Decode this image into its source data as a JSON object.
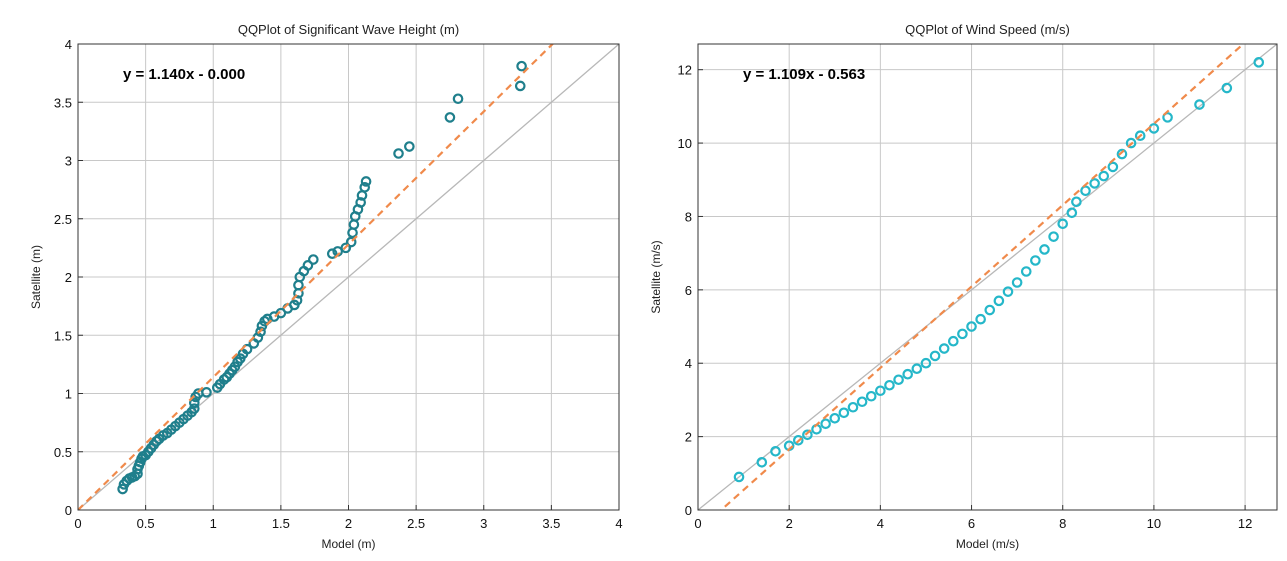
{
  "chart_data": [
    {
      "type": "scatter",
      "title": "QQPlot of  Significant Wave Height (m)",
      "xlabel": "Model (m)",
      "ylabel": "Satellite (m)",
      "annotation": "y = 1.140x - 0.000",
      "xlim": [
        0,
        4
      ],
      "ylim": [
        0,
        4
      ],
      "xticks": [
        0,
        0.5,
        1,
        1.5,
        2,
        2.5,
        3,
        3.5,
        4
      ],
      "xtick_labels": [
        "0",
        "0.5",
        "1",
        "1.5",
        "2",
        "2.5",
        "3",
        "3.5",
        "4"
      ],
      "yticks": [
        0,
        0.5,
        1,
        1.5,
        2,
        2.5,
        3,
        3.5,
        4
      ],
      "ytick_labels": [
        "0",
        "0.5",
        "1",
        "1.5",
        "2",
        "2.5",
        "3",
        "3.5",
        "4"
      ],
      "grid": true,
      "marker_color": "#1f7f8c",
      "fit_line": {
        "slope": 1.14,
        "intercept": 0.0,
        "color": "#f08a4b"
      },
      "reference_line": {
        "slope": 1,
        "intercept": 0,
        "color": "#b8b8b8"
      },
      "points": [
        [
          0.33,
          0.18
        ],
        [
          0.34,
          0.22
        ],
        [
          0.36,
          0.25
        ],
        [
          0.38,
          0.27
        ],
        [
          0.4,
          0.28
        ],
        [
          0.42,
          0.29
        ],
        [
          0.44,
          0.31
        ],
        [
          0.44,
          0.35
        ],
        [
          0.45,
          0.38
        ],
        [
          0.46,
          0.41
        ],
        [
          0.47,
          0.44
        ],
        [
          0.48,
          0.46
        ],
        [
          0.5,
          0.47
        ],
        [
          0.52,
          0.5
        ],
        [
          0.54,
          0.53
        ],
        [
          0.56,
          0.56
        ],
        [
          0.58,
          0.59
        ],
        [
          0.6,
          0.61
        ],
        [
          0.63,
          0.64
        ],
        [
          0.66,
          0.66
        ],
        [
          0.69,
          0.69
        ],
        [
          0.72,
          0.72
        ],
        [
          0.75,
          0.75
        ],
        [
          0.78,
          0.78
        ],
        [
          0.81,
          0.81
        ],
        [
          0.84,
          0.84
        ],
        [
          0.86,
          0.87
        ],
        [
          0.86,
          0.92
        ],
        [
          0.87,
          0.97
        ],
        [
          0.89,
          1.0
        ],
        [
          0.95,
          1.01
        ],
        [
          1.03,
          1.05
        ],
        [
          1.05,
          1.08
        ],
        [
          1.08,
          1.12
        ],
        [
          1.1,
          1.14
        ],
        [
          1.12,
          1.17
        ],
        [
          1.14,
          1.2
        ],
        [
          1.16,
          1.23
        ],
        [
          1.18,
          1.27
        ],
        [
          1.2,
          1.3
        ],
        [
          1.22,
          1.34
        ],
        [
          1.25,
          1.38
        ],
        [
          1.3,
          1.43
        ],
        [
          1.33,
          1.48
        ],
        [
          1.35,
          1.53
        ],
        [
          1.36,
          1.58
        ],
        [
          1.38,
          1.62
        ],
        [
          1.4,
          1.64
        ],
        [
          1.45,
          1.66
        ],
        [
          1.5,
          1.69
        ],
        [
          1.55,
          1.73
        ],
        [
          1.6,
          1.76
        ],
        [
          1.62,
          1.8
        ],
        [
          1.63,
          1.86
        ],
        [
          1.63,
          1.93
        ],
        [
          1.64,
          2.0
        ],
        [
          1.67,
          2.05
        ],
        [
          1.7,
          2.1
        ],
        [
          1.74,
          2.15
        ],
        [
          1.88,
          2.2
        ],
        [
          1.92,
          2.22
        ],
        [
          1.98,
          2.25
        ],
        [
          2.02,
          2.3
        ],
        [
          2.03,
          2.38
        ],
        [
          2.04,
          2.45
        ],
        [
          2.05,
          2.52
        ],
        [
          2.07,
          2.58
        ],
        [
          2.09,
          2.64
        ],
        [
          2.1,
          2.7
        ],
        [
          2.12,
          2.77
        ],
        [
          2.13,
          2.82
        ],
        [
          2.37,
          3.06
        ],
        [
          2.45,
          3.12
        ],
        [
          2.75,
          3.37
        ],
        [
          2.81,
          3.53
        ],
        [
          3.27,
          3.64
        ],
        [
          3.28,
          3.81
        ]
      ]
    },
    {
      "type": "scatter",
      "title": "QQPlot of  Wind Speed (m/s)",
      "xlabel": "Model (m/s)",
      "ylabel": "Satellite (m/s)",
      "annotation": "y = 1.109x - 0.563",
      "xlim": [
        0,
        12.7
      ],
      "ylim": [
        0,
        12.7
      ],
      "xticks": [
        0,
        2,
        4,
        6,
        8,
        10,
        12
      ],
      "xtick_labels": [
        "0",
        "2",
        "4",
        "6",
        "8",
        "10",
        "12"
      ],
      "yticks": [
        0,
        2,
        4,
        6,
        8,
        10,
        12
      ],
      "ytick_labels": [
        "0",
        "2",
        "4",
        "6",
        "8",
        "10",
        "12"
      ],
      "grid": true,
      "marker_color": "#25b7c9",
      "fit_line": {
        "slope": 1.109,
        "intercept": -0.563,
        "color": "#f08a4b"
      },
      "reference_line": {
        "slope": 1,
        "intercept": 0,
        "color": "#b8b8b8"
      },
      "points": [
        [
          0.9,
          0.9
        ],
        [
          1.4,
          1.3
        ],
        [
          1.7,
          1.6
        ],
        [
          2.0,
          1.75
        ],
        [
          2.2,
          1.9
        ],
        [
          2.4,
          2.05
        ],
        [
          2.6,
          2.2
        ],
        [
          2.8,
          2.35
        ],
        [
          3.0,
          2.5
        ],
        [
          3.2,
          2.65
        ],
        [
          3.4,
          2.8
        ],
        [
          3.6,
          2.95
        ],
        [
          3.8,
          3.1
        ],
        [
          4.0,
          3.25
        ],
        [
          4.2,
          3.4
        ],
        [
          4.4,
          3.55
        ],
        [
          4.6,
          3.7
        ],
        [
          4.8,
          3.85
        ],
        [
          5.0,
          4.0
        ],
        [
          5.2,
          4.2
        ],
        [
          5.4,
          4.4
        ],
        [
          5.6,
          4.6
        ],
        [
          5.8,
          4.8
        ],
        [
          6.0,
          5.0
        ],
        [
          6.2,
          5.2
        ],
        [
          6.4,
          5.45
        ],
        [
          6.6,
          5.7
        ],
        [
          6.8,
          5.95
        ],
        [
          7.0,
          6.2
        ],
        [
          7.2,
          6.5
        ],
        [
          7.4,
          6.8
        ],
        [
          7.6,
          7.1
        ],
        [
          7.8,
          7.45
        ],
        [
          8.0,
          7.8
        ],
        [
          8.2,
          8.1
        ],
        [
          8.3,
          8.4
        ],
        [
          8.5,
          8.7
        ],
        [
          8.7,
          8.9
        ],
        [
          8.9,
          9.1
        ],
        [
          9.1,
          9.35
        ],
        [
          9.3,
          9.7
        ],
        [
          9.5,
          10.0
        ],
        [
          9.7,
          10.2
        ],
        [
          10.0,
          10.4
        ],
        [
          10.3,
          10.7
        ],
        [
          11.0,
          11.05
        ],
        [
          11.6,
          11.5
        ],
        [
          12.3,
          12.2
        ]
      ]
    }
  ]
}
